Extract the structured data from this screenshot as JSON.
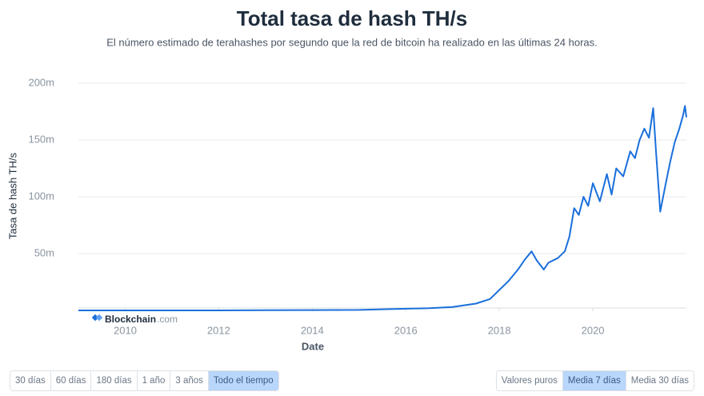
{
  "chart_data": {
    "type": "line",
    "title": "Total tasa de hash TH/s",
    "subtitle": "El número estimado de terahashes por segundo que la red de bitcoin ha realizado en las últimas 24 horas.",
    "y_label": "Tasa de hash TH/s",
    "x_label": "Date",
    "brand": "Blockchain",
    "brand_suffix": ".com",
    "xlim": [
      2009,
      2022
    ],
    "xticks": [
      2010,
      2012,
      2014,
      2016,
      2018,
      2020
    ],
    "ylim": [
      0,
      200000000
    ],
    "yticks": [
      {
        "value": 50000000,
        "label": "50m"
      },
      {
        "value": 100000000,
        "label": "100m"
      },
      {
        "value": 150000000,
        "label": "150m"
      },
      {
        "value": 200000000,
        "label": "200m"
      }
    ],
    "grid": true,
    "series": [
      {
        "name": "Tasa de hash",
        "color": "#1a6fdc",
        "x": [
          2009.0,
          2010.0,
          2011.0,
          2012.0,
          2013.0,
          2014.0,
          2015.0,
          2016.0,
          2016.5,
          2017.0,
          2017.5,
          2017.8,
          2018.0,
          2018.2,
          2018.4,
          2018.55,
          2018.69,
          2018.8,
          2018.95,
          2019.05,
          2019.25,
          2019.4,
          2019.5,
          2019.6,
          2019.7,
          2019.8,
          2019.9,
          2020.0,
          2020.15,
          2020.3,
          2020.4,
          2020.5,
          2020.65,
          2020.8,
          2020.9,
          2021.0,
          2021.1,
          2021.2,
          2021.29,
          2021.35,
          2021.44,
          2021.55,
          2021.65,
          2021.75,
          2021.85,
          2021.93,
          2021.97,
          2022.0
        ],
        "values": [
          0,
          100,
          10000,
          20000,
          150000,
          300000,
          450000,
          1500000,
          2000000,
          3000000,
          6000000,
          10000000,
          18000000,
          26000000,
          36000000,
          45000000,
          52000000,
          44000000,
          36000000,
          42000000,
          46000000,
          52000000,
          65000000,
          90000000,
          84000000,
          100000000,
          92000000,
          112000000,
          96000000,
          120000000,
          102000000,
          125000000,
          118000000,
          140000000,
          134000000,
          150000000,
          160000000,
          152000000,
          178000000,
          140000000,
          87000000,
          110000000,
          130000000,
          148000000,
          160000000,
          172000000,
          180000000,
          170000000
        ]
      }
    ],
    "range_buttons": [
      "30 días",
      "60 días",
      "180 días",
      "1 año",
      "3 años",
      "Todo el tiempo"
    ],
    "range_selected": 5,
    "avg_buttons": [
      "Valores puros",
      "Media 7 días",
      "Media 30 días"
    ],
    "avg_selected": 1
  }
}
